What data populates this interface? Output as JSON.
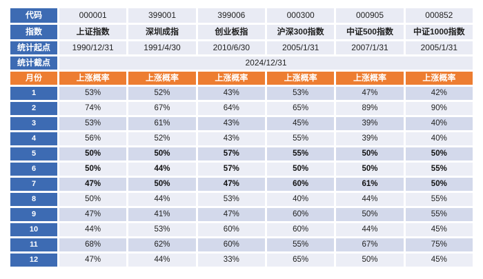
{
  "table": {
    "row_labels": {
      "code": "代码",
      "index": "指数",
      "start": "统计起点",
      "end": "统计截点",
      "month": "月份"
    },
    "codes": [
      "000001",
      "399001",
      "399006",
      "000300",
      "000905",
      "000852"
    ],
    "index_names": [
      "上证指数",
      "深圳成指",
      "创业板指",
      "沪深300指数",
      "中证500指数",
      "中证1000指数"
    ],
    "start_dates": [
      "1990/12/31",
      "1991/4/30",
      "2010/6/30",
      "2005/1/31",
      "2007/1/31",
      "2005/1/31"
    ],
    "end_date": "2024/12/31",
    "prob_header": "上涨概率",
    "bold_months": [
      5,
      6,
      7
    ],
    "rows": [
      {
        "month": "1",
        "values": [
          "53%",
          "52%",
          "43%",
          "53%",
          "47%",
          "42%"
        ]
      },
      {
        "month": "2",
        "values": [
          "74%",
          "67%",
          "64%",
          "65%",
          "89%",
          "90%"
        ]
      },
      {
        "month": "3",
        "values": [
          "53%",
          "61%",
          "43%",
          "45%",
          "39%",
          "40%"
        ]
      },
      {
        "month": "4",
        "values": [
          "56%",
          "52%",
          "43%",
          "55%",
          "39%",
          "40%"
        ]
      },
      {
        "month": "5",
        "values": [
          "50%",
          "50%",
          "57%",
          "55%",
          "50%",
          "50%"
        ]
      },
      {
        "month": "6",
        "values": [
          "50%",
          "44%",
          "57%",
          "50%",
          "50%",
          "55%"
        ]
      },
      {
        "month": "7",
        "values": [
          "47%",
          "50%",
          "47%",
          "60%",
          "61%",
          "50%"
        ]
      },
      {
        "month": "8",
        "values": [
          "50%",
          "44%",
          "53%",
          "40%",
          "44%",
          "55%"
        ]
      },
      {
        "month": "9",
        "values": [
          "47%",
          "41%",
          "47%",
          "60%",
          "50%",
          "55%"
        ]
      },
      {
        "month": "10",
        "values": [
          "44%",
          "53%",
          "60%",
          "60%",
          "44%",
          "45%"
        ]
      },
      {
        "month": "11",
        "values": [
          "68%",
          "62%",
          "60%",
          "55%",
          "67%",
          "75%"
        ]
      },
      {
        "month": "12",
        "values": [
          "47%",
          "44%",
          "33%",
          "65%",
          "50%",
          "45%"
        ]
      }
    ]
  },
  "colors": {
    "label_blue": "#3D6BB3",
    "header_orange": "#ED7D31",
    "row_stripe_dark": "#D3D9EB",
    "row_stripe_light": "#ECEEF6",
    "cell_light": "#E9EBF4",
    "text": "#222222"
  },
  "chart_data": {
    "type": "table",
    "title": "各指数月度上涨概率",
    "metric": "上涨概率",
    "columns": [
      "月份",
      "上证指数",
      "深圳成指",
      "创业板指",
      "沪深300指数",
      "中证500指数",
      "中证1000指数"
    ],
    "index_codes": [
      "000001",
      "399001",
      "399006",
      "000300",
      "000905",
      "000852"
    ],
    "stat_start_dates": [
      "1990/12/31",
      "1991/4/30",
      "2010/6/30",
      "2005/1/31",
      "2007/1/31",
      "2005/1/31"
    ],
    "stat_end_date": "2024/12/31",
    "categories": [
      1,
      2,
      3,
      4,
      5,
      6,
      7,
      8,
      9,
      10,
      11,
      12
    ],
    "series": [
      {
        "name": "上证指数",
        "code": "000001",
        "values": [
          53,
          74,
          53,
          56,
          50,
          50,
          47,
          50,
          47,
          44,
          68,
          47
        ]
      },
      {
        "name": "深圳成指",
        "code": "399001",
        "values": [
          52,
          67,
          61,
          52,
          50,
          44,
          50,
          44,
          41,
          53,
          62,
          44
        ]
      },
      {
        "name": "创业板指",
        "code": "399006",
        "values": [
          43,
          64,
          43,
          43,
          57,
          57,
          47,
          53,
          47,
          60,
          60,
          33
        ]
      },
      {
        "name": "沪深300指数",
        "code": "000300",
        "values": [
          53,
          65,
          45,
          55,
          55,
          50,
          60,
          40,
          60,
          60,
          55,
          65
        ]
      },
      {
        "name": "中证500指数",
        "code": "000905",
        "values": [
          47,
          89,
          39,
          39,
          50,
          50,
          61,
          44,
          50,
          44,
          67,
          50
        ]
      },
      {
        "name": "中证1000指数",
        "code": "000852",
        "values": [
          42,
          90,
          40,
          40,
          50,
          55,
          50,
          55,
          55,
          45,
          75,
          45
        ]
      }
    ],
    "unit": "percent",
    "highlighted_rows": [
      5,
      6,
      7
    ]
  }
}
